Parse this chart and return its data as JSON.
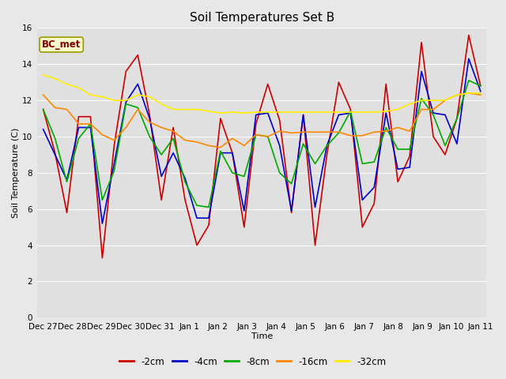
{
  "title": "Soil Temperatures Set B",
  "xlabel": "Time",
  "ylabel": "Soil Temperature (C)",
  "annotation": "BC_met",
  "ylim": [
    0,
    16
  ],
  "yticks": [
    0,
    2,
    4,
    6,
    8,
    10,
    12,
    14,
    16
  ],
  "x_labels": [
    "Dec 27",
    "Dec 28",
    "Dec 29",
    "Dec 30",
    "Dec 31",
    "Jan 1",
    "Jan 2",
    "Jan 3",
    "Jan 4",
    "Jan 5",
    "Jan 6",
    "Jan 7",
    "Jan 8",
    "Jan 9",
    "Jan 10",
    "Jan 11"
  ],
  "series": {
    "-2cm": [
      11.5,
      9.1,
      5.8,
      11.1,
      11.1,
      3.3,
      9.5,
      13.6,
      14.5,
      11.2,
      6.5,
      10.5,
      6.5,
      4.0,
      5.1,
      11.0,
      9.1,
      5.0,
      10.7,
      12.9,
      10.9,
      5.8,
      11.2,
      4.0,
      9.0,
      13.0,
      11.5,
      5.0,
      6.3,
      12.9,
      7.5,
      8.9,
      15.2,
      10.0,
      9.0,
      11.0,
      15.6,
      12.8
    ],
    "-4cm": [
      10.4,
      9.0,
      7.6,
      10.5,
      10.5,
      5.2,
      8.5,
      11.9,
      12.9,
      11.0,
      7.8,
      9.1,
      7.7,
      5.5,
      5.5,
      9.1,
      9.1,
      5.9,
      11.2,
      11.3,
      9.5,
      5.9,
      11.2,
      6.1,
      9.5,
      11.2,
      11.3,
      6.5,
      7.2,
      11.3,
      8.2,
      8.3,
      13.6,
      11.3,
      11.2,
      9.6,
      14.3,
      12.5
    ],
    "-8cm": [
      11.5,
      9.9,
      7.5,
      9.9,
      10.7,
      6.5,
      8.1,
      11.8,
      11.6,
      10.0,
      9.0,
      9.9,
      7.5,
      6.2,
      6.1,
      9.2,
      8.0,
      7.8,
      10.1,
      10.0,
      8.0,
      7.4,
      9.6,
      8.5,
      9.5,
      10.2,
      11.4,
      8.5,
      8.6,
      10.5,
      9.3,
      9.3,
      12.1,
      11.2,
      9.5,
      11.0,
      13.1,
      12.8
    ],
    "-16cm": [
      12.3,
      11.6,
      11.5,
      10.7,
      10.7,
      10.1,
      9.8,
      10.5,
      11.5,
      10.8,
      10.5,
      10.3,
      9.8,
      9.7,
      9.5,
      9.4,
      9.9,
      9.5,
      10.1,
      10.0,
      10.3,
      10.2,
      10.25,
      10.25,
      10.25,
      10.25,
      10.05,
      10.05,
      10.25,
      10.3,
      10.5,
      10.3,
      11.5,
      11.5,
      12.0,
      12.3,
      12.4,
      12.3
    ],
    "-32cm": [
      13.4,
      13.2,
      12.9,
      12.7,
      12.3,
      12.2,
      12.0,
      12.0,
      12.3,
      12.2,
      11.8,
      11.5,
      11.5,
      11.5,
      11.4,
      11.3,
      11.35,
      11.3,
      11.35,
      11.35,
      11.35,
      11.35,
      11.35,
      11.35,
      11.35,
      11.35,
      11.35,
      11.35,
      11.35,
      11.4,
      11.5,
      11.8,
      12.0,
      12.0,
      12.0,
      12.3,
      12.4,
      12.4
    ]
  },
  "colors": {
    "-2cm": "#cc0000",
    "-4cm": "#0000cc",
    "-8cm": "#00aa00",
    "-16cm": "#ff8800",
    "-32cm": "#ffee00"
  },
  "line_width": 1.2,
  "fig_bg_color": "#e8e8e8",
  "plot_bg_color": "#e0e0e0",
  "grid_color": "#ffffff",
  "title_fontsize": 11,
  "label_fontsize": 8,
  "tick_fontsize": 7.5
}
